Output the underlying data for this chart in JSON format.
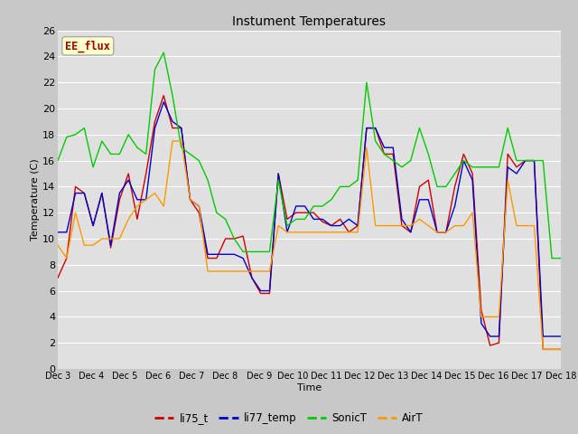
{
  "title": "Instument Temperatures",
  "xlabel": "Time",
  "ylabel": "Temperature (C)",
  "ylim": [
    0,
    26
  ],
  "x_tick_labels": [
    "Dec 3",
    "Dec 4",
    "Dec 5",
    "Dec 6",
    "Dec 7",
    "Dec 8",
    "Dec 9",
    "Dec 10",
    "Dec 11",
    "Dec 12",
    "Dec 13",
    "Dec 14",
    "Dec 15",
    "Dec 16",
    "Dec 17",
    "Dec 18"
  ],
  "fig_bg_color": "#c8c8c8",
  "plot_bg_color": "#e0e0e0",
  "annotation_label": "EE_flux",
  "annotation_bg": "#ffffcc",
  "annotation_border": "#aaaaaa",
  "annotation_text_color": "#990000",
  "li75_t_color": "#cc0000",
  "li77_temp_color": "#0000cc",
  "SonicT_color": "#00cc00",
  "AirT_color": "#ff9900",
  "li75_t": [
    7.0,
    8.5,
    14.0,
    13.5,
    11.0,
    13.5,
    9.3,
    13.0,
    15.0,
    11.5,
    15.0,
    19.0,
    21.0,
    18.5,
    18.5,
    13.0,
    12.0,
    8.5,
    8.5,
    10.0,
    10.0,
    10.2,
    7.0,
    5.8,
    5.8,
    15.0,
    11.5,
    12.0,
    12.0,
    12.0,
    11.3,
    11.0,
    11.5,
    10.5,
    11.0,
    18.5,
    18.5,
    16.5,
    16.5,
    11.0,
    10.5,
    14.0,
    14.5,
    10.5,
    10.5,
    14.0,
    16.5,
    15.0,
    4.5,
    1.8,
    2.0,
    16.5,
    15.5,
    16.0,
    16.0,
    1.5,
    1.5,
    1.5
  ],
  "li77_temp": [
    10.5,
    10.5,
    13.5,
    13.5,
    11.0,
    13.5,
    9.5,
    13.5,
    14.5,
    13.0,
    13.0,
    18.5,
    20.5,
    19.0,
    18.5,
    13.0,
    12.5,
    8.8,
    8.8,
    8.8,
    8.8,
    8.5,
    7.0,
    6.0,
    6.0,
    15.0,
    10.5,
    12.5,
    12.5,
    11.5,
    11.5,
    11.0,
    11.0,
    11.5,
    11.0,
    18.5,
    18.5,
    17.0,
    17.0,
    11.5,
    10.5,
    13.0,
    13.0,
    10.5,
    10.5,
    12.5,
    16.0,
    14.5,
    3.5,
    2.5,
    2.5,
    15.5,
    15.0,
    16.0,
    16.0,
    2.5,
    2.5,
    2.5
  ],
  "SonicT": [
    16.0,
    17.8,
    18.0,
    18.5,
    15.5,
    17.5,
    16.5,
    16.5,
    18.0,
    17.0,
    16.5,
    23.0,
    24.3,
    21.0,
    17.0,
    16.5,
    16.0,
    14.5,
    12.0,
    11.5,
    10.0,
    9.0,
    9.0,
    9.0,
    9.0,
    14.5,
    11.0,
    11.5,
    11.5,
    12.5,
    12.5,
    13.0,
    14.0,
    14.0,
    14.5,
    22.0,
    17.5,
    16.5,
    16.0,
    15.5,
    16.0,
    18.5,
    16.5,
    14.0,
    14.0,
    15.0,
    16.0,
    15.5,
    15.5,
    15.5,
    15.5,
    18.5,
    16.0,
    16.0,
    16.0,
    16.0,
    8.5,
    8.5
  ],
  "AirT": [
    9.5,
    8.5,
    12.0,
    9.5,
    9.5,
    10.0,
    10.0,
    10.0,
    11.5,
    12.5,
    13.0,
    13.5,
    12.5,
    17.5,
    17.5,
    13.0,
    12.5,
    7.5,
    7.5,
    7.5,
    7.5,
    7.5,
    7.5,
    7.5,
    7.5,
    11.0,
    10.5,
    10.5,
    10.5,
    10.5,
    10.5,
    10.5,
    10.5,
    10.5,
    10.5,
    17.0,
    11.0,
    11.0,
    11.0,
    11.0,
    11.0,
    11.5,
    11.0,
    10.5,
    10.5,
    11.0,
    11.0,
    12.0,
    4.0,
    4.0,
    4.0,
    14.5,
    11.0,
    11.0,
    11.0,
    1.5,
    1.5,
    1.5
  ]
}
